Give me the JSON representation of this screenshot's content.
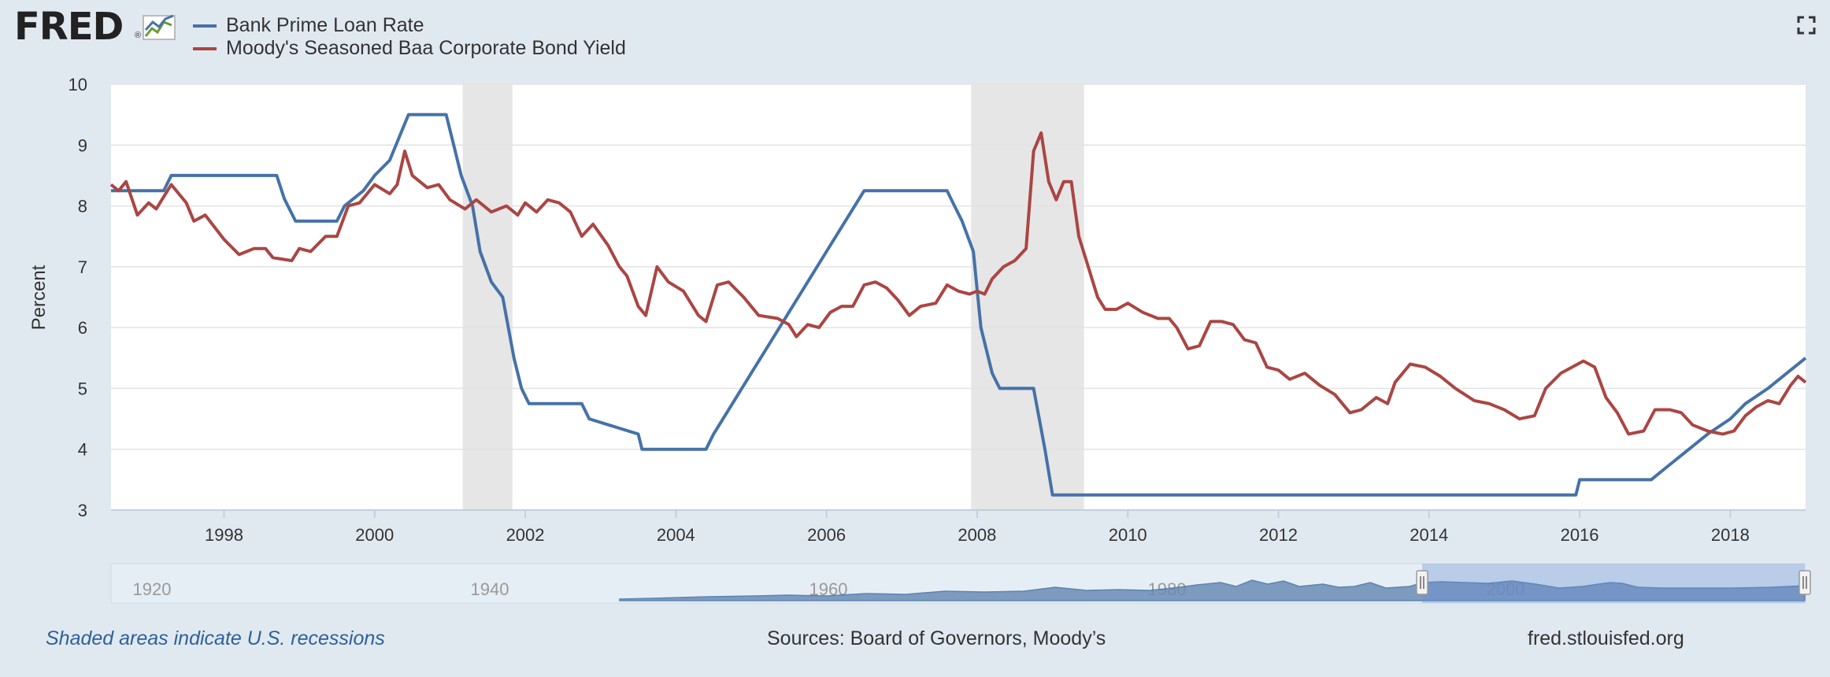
{
  "brand": {
    "name": "FRED",
    "reg": "®"
  },
  "legend": [
    {
      "label": "Bank Prime Loan Rate",
      "color": "#4572a7"
    },
    {
      "label": "Moody's Seasoned Baa Corporate Bond Yield",
      "color": "#aa4643"
    }
  ],
  "footer": {
    "note": "Shaded areas indicate U.S. recessions",
    "sources": "Sources: Board of Governors, Moody’s",
    "site": "fred.stlouisfed.org"
  },
  "navigator": {
    "labels": [
      "1920",
      "1940",
      "1960",
      "1980",
      "2000"
    ],
    "range": [
      1996.5,
      2019.0
    ]
  },
  "chart_data": {
    "type": "line",
    "ylabel": "Percent",
    "xlabel": "",
    "ylim": [
      3,
      10
    ],
    "xlim": [
      1996.5,
      2019.0
    ],
    "yticks": [
      3,
      4,
      5,
      6,
      7,
      8,
      9,
      10
    ],
    "xticks": [
      1998,
      2000,
      2002,
      2004,
      2006,
      2008,
      2010,
      2012,
      2014,
      2016,
      2018
    ],
    "grid": true,
    "legend_position": "top-left",
    "recessions": [
      [
        2001.17,
        2001.83
      ],
      [
        2007.92,
        2009.42
      ]
    ],
    "series": [
      {
        "name": "Bank Prime Loan Rate",
        "color": "#4572a7",
        "points": [
          [
            1996.5,
            8.25
          ],
          [
            1997.2,
            8.25
          ],
          [
            1997.3,
            8.5
          ],
          [
            1998.7,
            8.5
          ],
          [
            1998.8,
            8.12
          ],
          [
            1998.95,
            7.75
          ],
          [
            1999.5,
            7.75
          ],
          [
            1999.6,
            8.0
          ],
          [
            1999.85,
            8.25
          ],
          [
            2000.0,
            8.5
          ],
          [
            2000.2,
            8.75
          ],
          [
            2000.45,
            9.5
          ],
          [
            2000.95,
            9.5
          ],
          [
            2001.05,
            9.0
          ],
          [
            2001.15,
            8.5
          ],
          [
            2001.3,
            8.0
          ],
          [
            2001.4,
            7.25
          ],
          [
            2001.55,
            6.75
          ],
          [
            2001.7,
            6.5
          ],
          [
            2001.85,
            5.5
          ],
          [
            2001.95,
            5.0
          ],
          [
            2002.05,
            4.75
          ],
          [
            2002.75,
            4.75
          ],
          [
            2002.85,
            4.5
          ],
          [
            2003.5,
            4.25
          ],
          [
            2003.55,
            4.0
          ],
          [
            2004.4,
            4.0
          ],
          [
            2004.5,
            4.25
          ],
          [
            2004.75,
            4.75
          ],
          [
            2005.0,
            5.25
          ],
          [
            2005.25,
            5.75
          ],
          [
            2005.5,
            6.25
          ],
          [
            2005.75,
            6.75
          ],
          [
            2006.0,
            7.25
          ],
          [
            2006.25,
            7.75
          ],
          [
            2006.5,
            8.25
          ],
          [
            2007.6,
            8.25
          ],
          [
            2007.7,
            8.0
          ],
          [
            2007.8,
            7.75
          ],
          [
            2007.95,
            7.25
          ],
          [
            2008.05,
            6.0
          ],
          [
            2008.2,
            5.25
          ],
          [
            2008.3,
            5.0
          ],
          [
            2008.75,
            5.0
          ],
          [
            2008.9,
            4.0
          ],
          [
            2009.0,
            3.25
          ],
          [
            2015.95,
            3.25
          ],
          [
            2016.0,
            3.5
          ],
          [
            2016.95,
            3.5
          ],
          [
            2017.2,
            3.75
          ],
          [
            2017.45,
            4.0
          ],
          [
            2017.7,
            4.25
          ],
          [
            2018.0,
            4.5
          ],
          [
            2018.2,
            4.75
          ],
          [
            2018.5,
            5.0
          ],
          [
            2018.75,
            5.25
          ],
          [
            2019.0,
            5.5
          ]
        ]
      },
      {
        "name": "Moody's Seasoned Baa Corporate Bond Yield",
        "color": "#aa4643",
        "points": [
          [
            1996.5,
            8.35
          ],
          [
            1996.6,
            8.25
          ],
          [
            1996.7,
            8.4
          ],
          [
            1996.85,
            7.85
          ],
          [
            1997.0,
            8.05
          ],
          [
            1997.1,
            7.95
          ],
          [
            1997.3,
            8.35
          ],
          [
            1997.5,
            8.05
          ],
          [
            1997.6,
            7.75
          ],
          [
            1997.75,
            7.85
          ],
          [
            1998.0,
            7.45
          ],
          [
            1998.2,
            7.2
          ],
          [
            1998.4,
            7.3
          ],
          [
            1998.55,
            7.3
          ],
          [
            1998.65,
            7.15
          ],
          [
            1998.9,
            7.1
          ],
          [
            1999.0,
            7.3
          ],
          [
            1999.15,
            7.25
          ],
          [
            1999.35,
            7.5
          ],
          [
            1999.5,
            7.5
          ],
          [
            1999.65,
            8.0
          ],
          [
            1999.8,
            8.05
          ],
          [
            2000.0,
            8.35
          ],
          [
            2000.2,
            8.2
          ],
          [
            2000.3,
            8.35
          ],
          [
            2000.4,
            8.9
          ],
          [
            2000.5,
            8.5
          ],
          [
            2000.7,
            8.3
          ],
          [
            2000.85,
            8.35
          ],
          [
            2001.0,
            8.1
          ],
          [
            2001.2,
            7.95
          ],
          [
            2001.35,
            8.1
          ],
          [
            2001.55,
            7.9
          ],
          [
            2001.75,
            8.0
          ],
          [
            2001.9,
            7.85
          ],
          [
            2002.0,
            8.05
          ],
          [
            2002.15,
            7.9
          ],
          [
            2002.3,
            8.1
          ],
          [
            2002.45,
            8.05
          ],
          [
            2002.6,
            7.9
          ],
          [
            2002.75,
            7.5
          ],
          [
            2002.9,
            7.7
          ],
          [
            2003.1,
            7.35
          ],
          [
            2003.25,
            7.0
          ],
          [
            2003.35,
            6.85
          ],
          [
            2003.5,
            6.35
          ],
          [
            2003.6,
            6.2
          ],
          [
            2003.75,
            7.0
          ],
          [
            2003.9,
            6.75
          ],
          [
            2004.1,
            6.6
          ],
          [
            2004.3,
            6.2
          ],
          [
            2004.4,
            6.1
          ],
          [
            2004.55,
            6.7
          ],
          [
            2004.7,
            6.75
          ],
          [
            2004.9,
            6.5
          ],
          [
            2005.1,
            6.2
          ],
          [
            2005.35,
            6.15
          ],
          [
            2005.5,
            6.05
          ],
          [
            2005.6,
            5.85
          ],
          [
            2005.75,
            6.05
          ],
          [
            2005.9,
            6.0
          ],
          [
            2006.05,
            6.25
          ],
          [
            2006.2,
            6.35
          ],
          [
            2006.35,
            6.35
          ],
          [
            2006.5,
            6.7
          ],
          [
            2006.65,
            6.75
          ],
          [
            2006.8,
            6.65
          ],
          [
            2006.95,
            6.45
          ],
          [
            2007.1,
            6.2
          ],
          [
            2007.25,
            6.35
          ],
          [
            2007.45,
            6.4
          ],
          [
            2007.6,
            6.7
          ],
          [
            2007.75,
            6.6
          ],
          [
            2007.9,
            6.55
          ],
          [
            2008.0,
            6.6
          ],
          [
            2008.1,
            6.55
          ],
          [
            2008.2,
            6.8
          ],
          [
            2008.35,
            7.0
          ],
          [
            2008.5,
            7.1
          ],
          [
            2008.65,
            7.3
          ],
          [
            2008.75,
            8.9
          ],
          [
            2008.85,
            9.2
          ],
          [
            2008.95,
            8.4
          ],
          [
            2009.05,
            8.1
          ],
          [
            2009.15,
            8.4
          ],
          [
            2009.25,
            8.4
          ],
          [
            2009.35,
            7.5
          ],
          [
            2009.5,
            6.9
          ],
          [
            2009.6,
            6.5
          ],
          [
            2009.7,
            6.3
          ],
          [
            2009.85,
            6.3
          ],
          [
            2010.0,
            6.4
          ],
          [
            2010.2,
            6.25
          ],
          [
            2010.4,
            6.15
          ],
          [
            2010.55,
            6.15
          ],
          [
            2010.65,
            6.0
          ],
          [
            2010.8,
            5.65
          ],
          [
            2010.95,
            5.7
          ],
          [
            2011.1,
            6.1
          ],
          [
            2011.25,
            6.1
          ],
          [
            2011.4,
            6.05
          ],
          [
            2011.55,
            5.8
          ],
          [
            2011.7,
            5.75
          ],
          [
            2011.85,
            5.35
          ],
          [
            2012.0,
            5.3
          ],
          [
            2012.15,
            5.15
          ],
          [
            2012.35,
            5.25
          ],
          [
            2012.55,
            5.05
          ],
          [
            2012.75,
            4.9
          ],
          [
            2012.95,
            4.6
          ],
          [
            2013.1,
            4.65
          ],
          [
            2013.3,
            4.85
          ],
          [
            2013.45,
            4.75
          ],
          [
            2013.55,
            5.1
          ],
          [
            2013.75,
            5.4
          ],
          [
            2013.95,
            5.35
          ],
          [
            2014.15,
            5.2
          ],
          [
            2014.35,
            5.0
          ],
          [
            2014.6,
            4.8
          ],
          [
            2014.8,
            4.75
          ],
          [
            2015.0,
            4.65
          ],
          [
            2015.2,
            4.5
          ],
          [
            2015.4,
            4.55
          ],
          [
            2015.55,
            5.0
          ],
          [
            2015.75,
            5.25
          ],
          [
            2015.9,
            5.35
          ],
          [
            2016.05,
            5.45
          ],
          [
            2016.2,
            5.35
          ],
          [
            2016.35,
            4.85
          ],
          [
            2016.5,
            4.6
          ],
          [
            2016.65,
            4.25
          ],
          [
            2016.85,
            4.3
          ],
          [
            2017.0,
            4.65
          ],
          [
            2017.2,
            4.65
          ],
          [
            2017.35,
            4.6
          ],
          [
            2017.5,
            4.4
          ],
          [
            2017.7,
            4.3
          ],
          [
            2017.9,
            4.25
          ],
          [
            2018.05,
            4.3
          ],
          [
            2018.2,
            4.55
          ],
          [
            2018.35,
            4.7
          ],
          [
            2018.5,
            4.8
          ],
          [
            2018.65,
            4.75
          ],
          [
            2018.8,
            5.05
          ],
          [
            2018.9,
            5.2
          ],
          [
            2019.0,
            5.1
          ]
        ]
      }
    ]
  }
}
